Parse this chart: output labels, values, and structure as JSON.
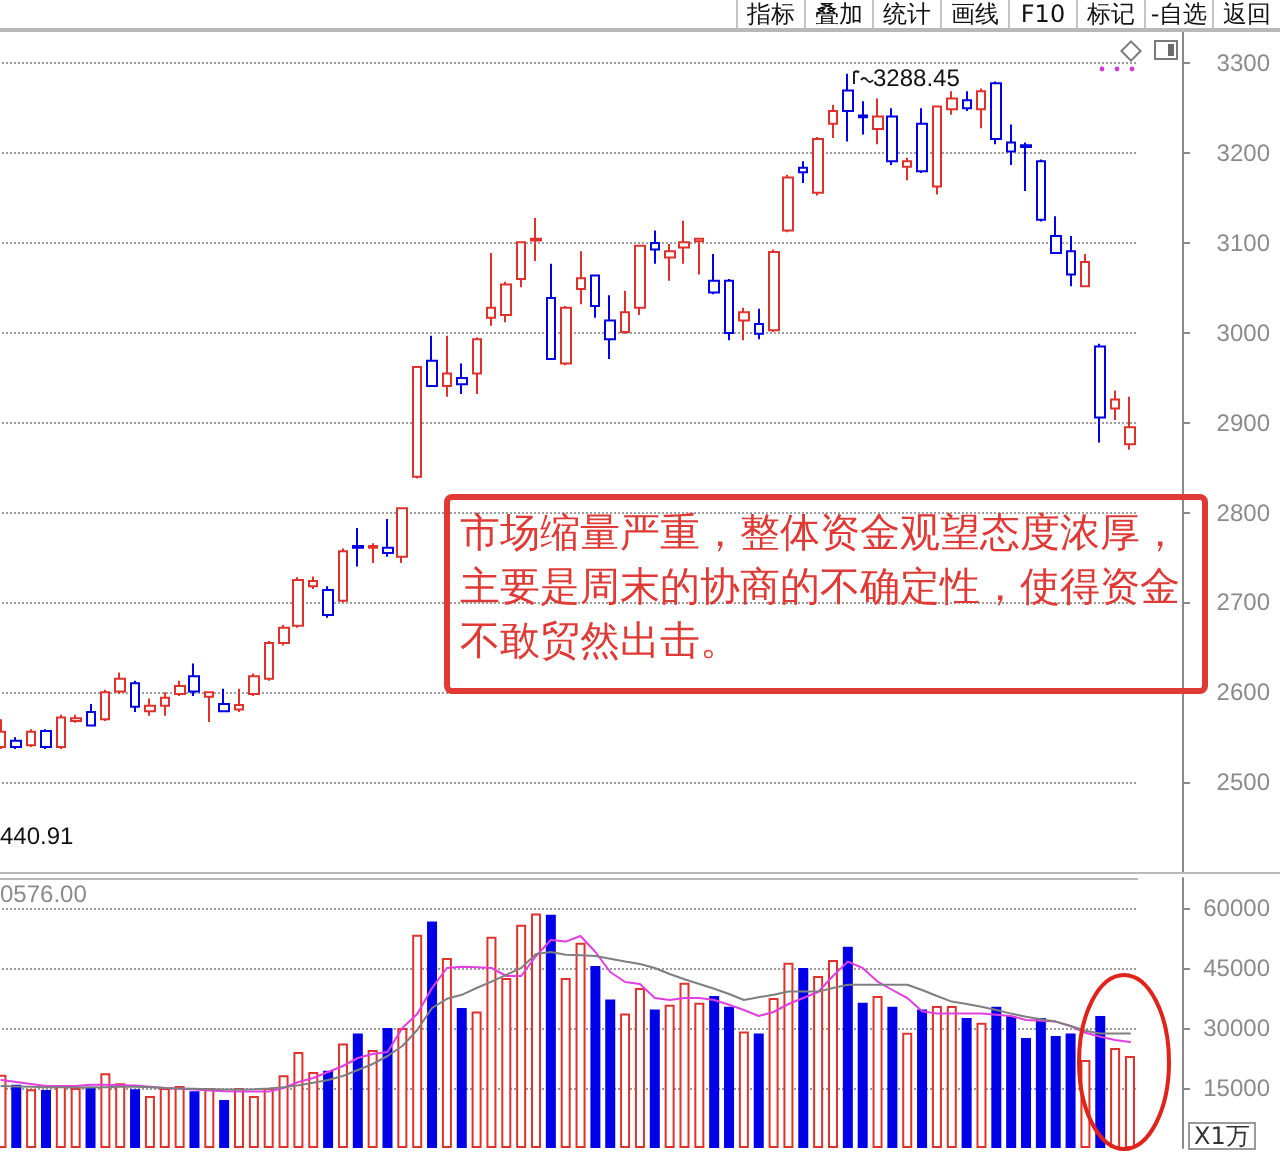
{
  "chart_data": [
    {
      "type": "other",
      "annotations": [
        "指标",
        "叠加",
        "统计",
        "画线",
        "F10",
        "标记",
        "-自选",
        "返回"
      ]
    },
    {
      "type": "candlestick",
      "categories": [
        null,
        null,
        null,
        null,
        null,
        null,
        null,
        null,
        null,
        null,
        null,
        null,
        null,
        null,
        null,
        null,
        null,
        null,
        null,
        null,
        null,
        null,
        null,
        null,
        null,
        null,
        null,
        null,
        null,
        null,
        null,
        null,
        null,
        null,
        null,
        null,
        null,
        null,
        null,
        null,
        null,
        null,
        null,
        null,
        null,
        null,
        null,
        null,
        null,
        null,
        null,
        null,
        null,
        null,
        null,
        null,
        null,
        null,
        null,
        null,
        null,
        null,
        null,
        null,
        null,
        null,
        null,
        null,
        null,
        null,
        null,
        null,
        null,
        null,
        null,
        null,
        null
      ],
      "ohlc": [
        [
          2539,
          2570,
          2537,
          2556
        ],
        [
          2546,
          2550,
          2537,
          2539
        ],
        [
          2541,
          2559,
          2539,
          2556
        ],
        [
          2557,
          2559,
          2537,
          2539
        ],
        [
          2539,
          2575,
          2537,
          2572
        ],
        [
          2568,
          2575,
          2566,
          2571
        ],
        [
          2578,
          2587,
          2562,
          2563
        ],
        [
          2570,
          2603,
          2568,
          2600
        ],
        [
          2601,
          2622,
          2598,
          2615
        ],
        [
          2610,
          2613,
          2578,
          2584
        ],
        [
          2579,
          2593,
          2574,
          2585
        ],
        [
          2585,
          2600,
          2574,
          2594
        ],
        [
          2598,
          2613,
          2596,
          2607
        ],
        [
          2618,
          2632,
          2596,
          2601
        ],
        [
          2595,
          2601,
          2567,
          2600
        ],
        [
          2587,
          2604,
          2578,
          2579
        ],
        [
          2581,
          2604,
          2578,
          2586
        ],
        [
          2598,
          2621,
          2596,
          2618
        ],
        [
          2615,
          2657,
          2613,
          2655
        ],
        [
          2655,
          2675,
          2652,
          2672
        ],
        [
          2674,
          2728,
          2672,
          2725
        ],
        [
          2718,
          2729,
          2715,
          2724
        ],
        [
          2714,
          2718,
          2683,
          2686
        ],
        [
          2702,
          2760,
          2700,
          2757
        ],
        [
          2763,
          2783,
          2740,
          2761
        ],
        [
          2761,
          2766,
          2744,
          2763
        ],
        [
          2761,
          2793,
          2751,
          2755
        ],
        [
          2751,
          2805,
          2744,
          2805
        ],
        [
          2840,
          2962,
          2838,
          2962
        ],
        [
          2969,
          2997,
          2940,
          2941
        ],
        [
          2941,
          2997,
          2929,
          2955
        ],
        [
          2950,
          2966,
          2932,
          2943
        ],
        [
          2955,
          2995,
          2932,
          2993
        ],
        [
          3017,
          3089,
          3008,
          3028
        ],
        [
          3020,
          3057,
          3012,
          3054
        ],
        [
          3060,
          3101,
          3051,
          3101
        ],
        [
          3103,
          3128,
          3080,
          3105
        ],
        [
          3039,
          3077,
          2970,
          2971
        ],
        [
          2966,
          3030,
          2964,
          3028
        ],
        [
          3049,
          3091,
          3032,
          3061
        ],
        [
          3064,
          3065,
          3017,
          3030
        ],
        [
          3014,
          3042,
          2971,
          2993
        ],
        [
          3001,
          3047,
          2999,
          3023
        ],
        [
          3028,
          3098,
          3020,
          3097
        ],
        [
          3100,
          3114,
          3077,
          3093
        ],
        [
          3084,
          3099,
          3058,
          3091
        ],
        [
          3095,
          3125,
          3077,
          3101
        ],
        [
          3102,
          3106,
          3065,
          3105
        ],
        [
          3058,
          3088,
          3043,
          3045
        ],
        [
          3058,
          3060,
          2992,
          3000
        ],
        [
          3014,
          3028,
          2992,
          3023
        ],
        [
          3010,
          3027,
          2993,
          2999
        ],
        [
          3003,
          3093,
          3001,
          3090
        ],
        [
          3114,
          3176,
          3112,
          3173
        ],
        [
          3184,
          3191,
          3167,
          3179
        ],
        [
          3156,
          3218,
          3153,
          3216
        ],
        [
          3233,
          3254,
          3217,
          3247
        ],
        [
          3270,
          3288.45,
          3213,
          3247
        ],
        [
          3242,
          3258,
          3221,
          3240
        ],
        [
          3227,
          3261,
          3210,
          3241
        ],
        [
          3241,
          3250,
          3187,
          3191
        ],
        [
          3185,
          3195,
          3170,
          3191
        ],
        [
          3233,
          3250,
          3178,
          3180
        ],
        [
          3163,
          3252,
          3154,
          3252
        ],
        [
          3249,
          3269,
          3243,
          3261
        ],
        [
          3259,
          3269,
          3247,
          3250
        ],
        [
          3249,
          3272,
          3228,
          3269
        ],
        [
          3278,
          3280,
          3210,
          3216
        ],
        [
          3212,
          3232,
          3187,
          3202
        ],
        [
          3209,
          3212,
          3158,
          3207
        ],
        [
          3191,
          3193,
          3124,
          3126
        ],
        [
          3108,
          3130,
          3088,
          3089
        ],
        [
          3091,
          3108,
          3052,
          3065
        ],
        [
          3052,
          3088,
          3051,
          3079
        ],
        [
          2985,
          2988,
          2878,
          2906
        ],
        [
          2916,
          2936,
          2903,
          2926
        ],
        [
          2876,
          2929,
          2870,
          2895
        ]
      ],
      "colors": [
        "#e0312b",
        "#0000e8",
        "#e0312b",
        "#0000e8",
        "#e0312b",
        "#e0312b",
        "#0000e8",
        "#e0312b",
        "#e0312b",
        "#0000e8",
        "#e0312b",
        "#e0312b",
        "#e0312b",
        "#0000e8",
        "#e0312b",
        "#0000e8",
        "#e0312b",
        "#e0312b",
        "#e0312b",
        "#e0312b",
        "#e0312b",
        "#e0312b",
        "#0000e8",
        "#e0312b",
        "#0000e8",
        "#e0312b",
        "#0000e8",
        "#e0312b",
        "#e0312b",
        "#0000e8",
        "#e0312b",
        "#0000e8",
        "#e0312b",
        "#e0312b",
        "#e0312b",
        "#e0312b",
        "#e0312b",
        "#0000e8",
        "#e0312b",
        "#e0312b",
        "#0000e8",
        "#0000e8",
        "#e0312b",
        "#e0312b",
        "#0000e8",
        "#e0312b",
        "#e0312b",
        "#e0312b",
        "#0000e8",
        "#0000e8",
        "#e0312b",
        "#0000e8",
        "#e0312b",
        "#e0312b",
        "#0000e8",
        "#e0312b",
        "#e0312b",
        "#0000e8",
        "#0000e8",
        "#e0312b",
        "#0000e8",
        "#e0312b",
        "#0000e8",
        "#e0312b",
        "#e0312b",
        "#0000e8",
        "#e0312b",
        "#0000e8",
        "#0000e8",
        "#0000e8",
        "#0000e8",
        "#0000e8",
        "#0000e8",
        "#e0312b",
        "#0000e8",
        "#e0312b",
        "#e0312b"
      ],
      "ylim": [
        2400,
        3335
      ],
      "yticks": [
        2500,
        2600,
        2700,
        2800,
        2900,
        3000,
        3100,
        3200,
        3300
      ],
      "grid": "y",
      "annotations": [
        "3288.45",
        "440.91",
        "市场缩量严重，整体资金观望态度浓厚，主要是周末的协商的不确定性，使得资金不敢贸然出击。"
      ]
    },
    {
      "type": "bar",
      "categories": [
        null,
        null,
        null,
        null,
        null,
        null,
        null,
        null,
        null,
        null,
        null,
        null,
        null,
        null,
        null,
        null,
        null,
        null,
        null,
        null,
        null,
        null,
        null,
        null,
        null,
        null,
        null,
        null,
        null,
        null,
        null,
        null,
        null,
        null,
        null,
        null,
        null,
        null,
        null,
        null,
        null,
        null,
        null,
        null,
        null,
        null,
        null,
        null,
        null,
        null,
        null,
        null,
        null,
        null,
        null,
        null,
        null,
        null,
        null,
        null,
        null,
        null,
        null,
        null,
        null,
        null,
        null,
        null,
        null,
        null,
        null,
        null,
        null,
        null,
        null,
        null,
        null
      ],
      "series": [
        {
          "type": "bar",
          "colors": [
            "#e0312b",
            "#0000e8",
            "#e0312b",
            "#0000e8",
            "#e0312b",
            "#e0312b",
            "#0000e8",
            "#e0312b",
            "#e0312b",
            "#0000e8",
            "#e0312b",
            "#e0312b",
            "#e0312b",
            "#0000e8",
            "#e0312b",
            "#0000e8",
            "#e0312b",
            "#e0312b",
            "#e0312b",
            "#e0312b",
            "#e0312b",
            "#e0312b",
            "#0000e8",
            "#e0312b",
            "#0000e8",
            "#e0312b",
            "#0000e8",
            "#e0312b",
            "#e0312b",
            "#0000e8",
            "#e0312b",
            "#0000e8",
            "#e0312b",
            "#e0312b",
            "#e0312b",
            "#e0312b",
            "#e0312b",
            "#0000e8",
            "#e0312b",
            "#e0312b",
            "#0000e8",
            "#0000e8",
            "#e0312b",
            "#e0312b",
            "#0000e8",
            "#e0312b",
            "#e0312b",
            "#e0312b",
            "#0000e8",
            "#0000e8",
            "#e0312b",
            "#0000e8",
            "#e0312b",
            "#e0312b",
            "#0000e8",
            "#e0312b",
            "#e0312b",
            "#0000e8",
            "#0000e8",
            "#e0312b",
            "#0000e8",
            "#e0312b",
            "#0000e8",
            "#e0312b",
            "#e0312b",
            "#0000e8",
            "#e0312b",
            "#0000e8",
            "#0000e8",
            "#0000e8",
            "#0000e8",
            "#0000e8",
            "#0000e8",
            "#e0312b",
            "#0000e8",
            "#e0312b",
            "#e0312b"
          ],
          "values": [
            18300,
            15800,
            14700,
            14500,
            15500,
            15000,
            15300,
            18700,
            16200,
            14700,
            13000,
            15000,
            15500,
            14200,
            15000,
            12000,
            15000,
            13000,
            15000,
            18200,
            24000,
            19000,
            19300,
            26100,
            28600,
            24500,
            30000,
            30000,
            53300,
            56600,
            47500,
            35000,
            34100,
            52800,
            42500,
            55800,
            58600,
            58300,
            42500,
            51300,
            45500,
            37100,
            33600,
            40000,
            34600,
            35800,
            41300,
            36300,
            38000,
            35300,
            29100,
            28600,
            37500,
            46300,
            45000,
            43000,
            47000,
            50300,
            36300,
            38000,
            35300,
            28800,
            34600,
            35500,
            35500,
            32500,
            31300,
            35300,
            33000,
            27500,
            32500,
            28000,
            28600,
            22000,
            33000,
            25000,
            23000
          ]
        },
        {
          "type": "line",
          "color": "#e23ee0",
          "values": [
            17000,
            16500,
            16000,
            15500,
            15500,
            15500,
            15800,
            15800,
            15700,
            15600,
            15300,
            15000,
            14800,
            14600,
            14400,
            14200,
            14100,
            14100,
            14100,
            15000,
            16500,
            17500,
            19000,
            20500,
            22500,
            23500,
            24000,
            30000,
            33500,
            40000,
            45000,
            45300,
            45200,
            45000,
            43000,
            43000,
            48000,
            52000,
            51600,
            53000,
            49000,
            44000,
            41500,
            41000,
            37500,
            37000,
            37500,
            37500,
            37000,
            35800,
            34500,
            33000,
            34000,
            36000,
            37500,
            39000,
            43000,
            46600,
            45000,
            41600,
            39500,
            37500,
            34200,
            33600,
            33600,
            33600,
            33600,
            33300,
            33000,
            32000,
            31800,
            31600,
            30500,
            28800,
            27800,
            27000,
            26500
          ]
        },
        {
          "type": "line",
          "color": "#7f7f7f",
          "values": [
            15500,
            15400,
            15300,
            15200,
            15200,
            15100,
            15100,
            15200,
            15300,
            15300,
            15200,
            15000,
            14900,
            14800,
            14700,
            14600,
            14600,
            14700,
            14900,
            15200,
            15700,
            16300,
            17000,
            18000,
            19500,
            21000,
            23000,
            25500,
            29500,
            35000,
            37300,
            38300,
            40000,
            41600,
            43300,
            45000,
            48500,
            49000,
            48300,
            48200,
            48000,
            47300,
            46600,
            46000,
            45000,
            43500,
            42200,
            41000,
            39800,
            38500,
            37000,
            37700,
            38300,
            39100,
            39100,
            39100,
            40000,
            40800,
            40800,
            40800,
            40800,
            40800,
            39500,
            38000,
            36600,
            36000,
            35300,
            34500,
            33600,
            32800,
            32200,
            31600,
            30500,
            29300,
            28600,
            28600,
            28600
          ]
        }
      ],
      "ylim": [
        0,
        67500
      ],
      "yticks": [
        15000,
        30000,
        45000,
        60000
      ],
      "grid": "y",
      "marker": "none",
      "ylabel": "X1万",
      "annotations": [
        "0576.00"
      ]
    }
  ]
}
